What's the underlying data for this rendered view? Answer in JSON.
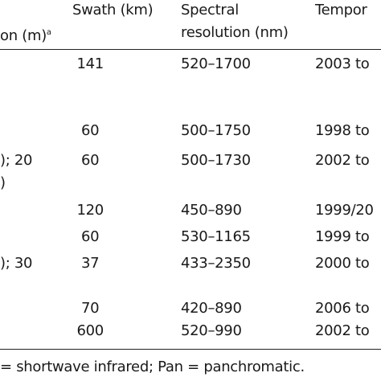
{
  "header": {
    "resolution": "on (m)",
    "resolution_note": "a",
    "swath": "Swath (km)",
    "spectral": [
      "Spectral",
      "resolution (nm)"
    ],
    "temporal": "Tempor"
  },
  "rows": [
    {
      "swath": 141,
      "spectral": "520–1700",
      "temporal": "2003 to"
    },
    {
      "swath": 60,
      "spectral": "500–1750",
      "temporal": "1998 to"
    },
    {
      "left": "); 20",
      "swath": 60,
      "spectral": "500–1730",
      "temporal": "2002 to"
    },
    {
      "left": ")"
    },
    {
      "swath": 120,
      "spectral": "450–890",
      "temporal": "1999/20"
    },
    {
      "swath": 60,
      "spectral": "530–1165",
      "temporal": "1999 to"
    },
    {
      "left": "); 30",
      "swath": 37,
      "spectral": "433–2350",
      "temporal": "2000 to"
    },
    {
      "swath": 70,
      "spectral": "420–890",
      "temporal": "2006 to"
    },
    {
      "swath": 600,
      "spectral": "520–990",
      "temporal": "2002 to"
    }
  ],
  "footer": "= shortwave infrared; Pan = panchromatic."
}
